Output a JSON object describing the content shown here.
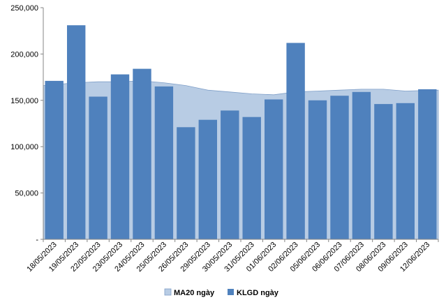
{
  "chart_data": {
    "type": "bar",
    "categories": [
      "18/05/2023",
      "19/05/2023",
      "22/05/2023",
      "23/05/2023",
      "24/05/2023",
      "25/05/2023",
      "26/05/2023",
      "29/05/2023",
      "30/05/2023",
      "31/05/2023",
      "01/06/2023",
      "02/06/2023",
      "05/06/2023",
      "06/06/2023",
      "07/06/2023",
      "08/06/2023",
      "09/06/2023",
      "12/06/2023"
    ],
    "series": [
      {
        "name": "MA20 ngày",
        "render": "area",
        "color": "#b8cce4",
        "values": [
          166000,
          169000,
          170000,
          170000,
          171000,
          169000,
          166000,
          161000,
          159000,
          157000,
          156000,
          159000,
          160000,
          161000,
          162000,
          162000,
          160000,
          161000
        ]
      },
      {
        "name": "KLGD ngày",
        "render": "bar",
        "color": "#4f81bd",
        "values": [
          171000,
          231000,
          154000,
          178000,
          184000,
          165000,
          121000,
          129000,
          139000,
          132000,
          151000,
          212000,
          150000,
          155000,
          159000,
          146000,
          147000,
          162000
        ]
      }
    ],
    "y_ticks": [
      "-",
      "50,000",
      "100,000",
      "150,000",
      "200,000",
      "250,000"
    ],
    "ylim": [
      0,
      250000
    ],
    "grid": false,
    "legend_position": "bottom"
  }
}
